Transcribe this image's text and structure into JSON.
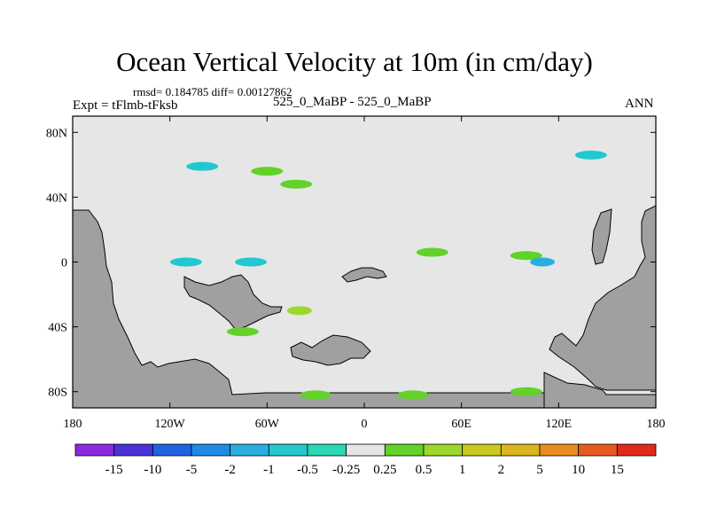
{
  "title": "Ocean Vertical Velocity at 10m (in cm/day)",
  "stats_line": "rmsd= 0.184785 diff= 0.00127862",
  "experiment": "Expt = tFlmb-tFksb",
  "case_label": "525_0_MaBP - 525_0_MaBP",
  "season": "ANN",
  "chart_data": {
    "type": "heatmap",
    "title": "Ocean Vertical Velocity at 10m (in cm/day)",
    "xlabel": "",
    "ylabel": "",
    "xlim": [
      -180,
      180
    ],
    "ylim": [
      -90,
      90
    ],
    "x_ticks": [
      {
        "value": -180,
        "label": "180"
      },
      {
        "value": -120,
        "label": "120W"
      },
      {
        "value": -60,
        "label": "60W"
      },
      {
        "value": 0,
        "label": "0"
      },
      {
        "value": 60,
        "label": "60E"
      },
      {
        "value": 120,
        "label": "120E"
      },
      {
        "value": 180,
        "label": "180"
      }
    ],
    "y_ticks": [
      {
        "value": 80,
        "label": "80N"
      },
      {
        "value": 40,
        "label": "40N"
      },
      {
        "value": 0,
        "label": "0"
      },
      {
        "value": -40,
        "label": "40S"
      },
      {
        "value": -80,
        "label": "80S"
      }
    ],
    "colorbar": {
      "levels": [
        "-15",
        "-10",
        "-5",
        "-2",
        "-1",
        "-0.5",
        "-0.25",
        "0.25",
        "0.5",
        "1",
        "2",
        "5",
        "10",
        "15"
      ],
      "colors": [
        "#8a2be2",
        "#4b32d8",
        "#1e64e0",
        "#1e8ce6",
        "#2aaee0",
        "#22c8d0",
        "#2ad8b4",
        "#e6e6e6",
        "#62d228",
        "#9cd82c",
        "#c8c81e",
        "#dcb41e",
        "#e88c1e",
        "#e85a1e",
        "#e02a1a"
      ]
    },
    "land_color": "#a0a0a0",
    "ocean_color": "#e6e6e6",
    "anomalies": [
      {
        "lon": -100,
        "lat": 59,
        "value": -0.5
      },
      {
        "lon": -60,
        "lat": 56,
        "value": 0.5
      },
      {
        "lon": -42,
        "lat": 48,
        "value": 0.5
      },
      {
        "lon": 140,
        "lat": 66,
        "value": -0.5
      },
      {
        "lon": 42,
        "lat": 6,
        "value": 0.5
      },
      {
        "lon": 100,
        "lat": 4,
        "value": 0.5
      },
      {
        "lon": 110,
        "lat": 0,
        "value": -1
      },
      {
        "lon": -70,
        "lat": 0,
        "value": -0.5
      },
      {
        "lon": -110,
        "lat": 0,
        "value": -0.5
      },
      {
        "lon": -40,
        "lat": -30,
        "value": 1
      },
      {
        "lon": -75,
        "lat": -43,
        "value": 0.5
      },
      {
        "lon": -30,
        "lat": -82,
        "value": 0.5
      },
      {
        "lon": 30,
        "lat": -82,
        "value": 0.5
      },
      {
        "lon": 100,
        "lat": -80,
        "value": 0.5
      }
    ]
  }
}
